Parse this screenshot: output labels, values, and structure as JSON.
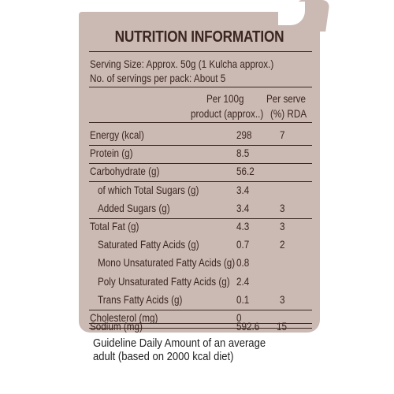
{
  "label": {
    "title": "NUTRITION INFORMATION",
    "serving_size": "Serving Size: Approx. 50g (1 Kulcha approx.)",
    "servings_per_pack": "No. of servings per pack: About 5",
    "col_per100_line1": "Per 100g",
    "col_per100_line2": "product (approx..)",
    "col_rda_line1": "Per serve",
    "col_rda_line2": "(%) RDA",
    "rows": [
      {
        "name": "Energy (kcal)",
        "per100": "298",
        "rda": "7"
      },
      {
        "name": "Protein (g)",
        "per100": "8.5",
        "rda": ""
      },
      {
        "name": "Carbohydrate (g)",
        "per100": "56.2",
        "rda": ""
      },
      {
        "name": "of which Total Sugars (g)",
        "per100": "3.4",
        "rda": ""
      },
      {
        "name": "Added Sugars (g)",
        "per100": "3.4",
        "rda": "3"
      },
      {
        "name": "Total Fat (g)",
        "per100": "4.3",
        "rda": "3"
      },
      {
        "name": "Saturated Fatty Acids (g)",
        "per100": "0.7",
        "rda": "2"
      },
      {
        "name": "Mono Unsaturated Fatty Acids (g)",
        "per100": "0.8",
        "rda": ""
      },
      {
        "name": "Poly Unsaturated Fatty Acids (g)",
        "per100": "2.4",
        "rda": ""
      },
      {
        "name": "Trans Fatty Acids (g)",
        "per100": "0.1",
        "rda": "3"
      },
      {
        "name": "Cholesterol (mg)",
        "per100": "0",
        "rda": ""
      },
      {
        "name": "Sodium (mg)",
        "per100": "592.6",
        "rda": "15"
      }
    ]
  },
  "footer": "Guideline Daily Amount of an average adult (based on 2000 kcal diet)",
  "colors": {
    "panel": "#cbb9b3",
    "text": "#3b2621"
  }
}
